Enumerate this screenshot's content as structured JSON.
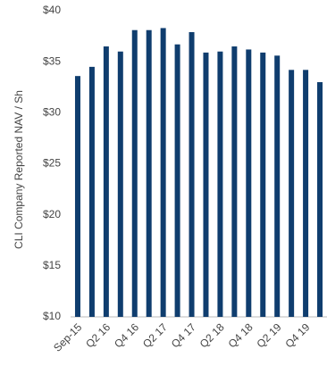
{
  "chart_data": {
    "type": "bar",
    "y_label": "CLI Company Reported NAV / Sh",
    "categories": [
      "Sep-15",
      null,
      "Q2 16",
      null,
      "Q4 16",
      null,
      "Q2 17",
      null,
      "Q4 17",
      null,
      "Q2 18",
      null,
      "Q4 18",
      null,
      "Q2 19",
      null,
      "Q4 19",
      null
    ],
    "values": [
      33.6,
      34.5,
      36.5,
      36.0,
      38.1,
      38.1,
      38.3,
      36.7,
      37.9,
      35.9,
      36.0,
      36.5,
      36.2,
      35.9,
      35.6,
      34.2,
      34.2,
      33.0
    ],
    "color": "#0f3d6e",
    "ylim": [
      10,
      40
    ],
    "yticks": [
      {
        "value": 10,
        "label": "$10"
      },
      {
        "value": 15,
        "label": "$15"
      },
      {
        "value": 20,
        "label": "$20"
      },
      {
        "value": 25,
        "label": "$25"
      },
      {
        "value": 30,
        "label": "$30"
      },
      {
        "value": 35,
        "label": "$35"
      },
      {
        "value": 40,
        "label": "$40"
      }
    ],
    "grid": false
  }
}
